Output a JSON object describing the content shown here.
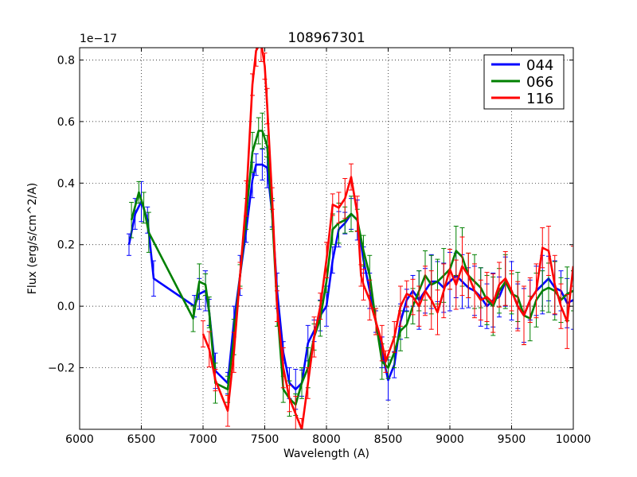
{
  "chart_data": {
    "type": "line",
    "title": "108967301",
    "xlabel": "Wavelength (A)",
    "ylabel": "Flux (erg/s/cm^2/A)",
    "offset_text": "1e−17",
    "xlim": [
      6000,
      10000
    ],
    "ylim": [
      -0.4,
      0.84
    ],
    "grid": true,
    "legend_position": "top-right",
    "x_ticks": [
      6000,
      6500,
      7000,
      7500,
      8000,
      8500,
      9000,
      9500,
      10000
    ],
    "x_tick_labels": [
      "6000",
      "6500",
      "7000",
      "7500",
      "8000",
      "8500",
      "9000",
      "9500",
      "10000"
    ],
    "y_ticks": [
      -0.2,
      0.0,
      0.2,
      0.4,
      0.6,
      0.8
    ],
    "y_tick_labels": [
      "−0.2",
      "0.0",
      "0.2",
      "0.4",
      "0.6",
      "0.8"
    ],
    "series": [
      {
        "name": "044",
        "color": "#0000ff",
        "points": [
          [
            6400,
            0.2
          ],
          [
            6450,
            0.3
          ],
          [
            6500,
            0.34
          ],
          [
            6550,
            0.28
          ],
          [
            6600,
            0.09
          ],
          [
            6930,
            0.0
          ],
          [
            6970,
            0.04
          ],
          [
            7020,
            0.05
          ],
          [
            7050,
            -0.02
          ],
          [
            7100,
            -0.21
          ],
          [
            7200,
            -0.25
          ],
          [
            7250,
            -0.05
          ],
          [
            7300,
            0.1
          ],
          [
            7350,
            0.25
          ],
          [
            7400,
            0.41
          ],
          [
            7430,
            0.46
          ],
          [
            7480,
            0.46
          ],
          [
            7520,
            0.45
          ],
          [
            7560,
            0.3
          ],
          [
            7600,
            0.05
          ],
          [
            7650,
            -0.15
          ],
          [
            7700,
            -0.25
          ],
          [
            7750,
            -0.27
          ],
          [
            7800,
            -0.25
          ],
          [
            7850,
            -0.12
          ],
          [
            7900,
            -0.08
          ],
          [
            7950,
            -0.03
          ],
          [
            8000,
            0.0
          ],
          [
            8050,
            0.15
          ],
          [
            8100,
            0.25
          ],
          [
            8150,
            0.27
          ],
          [
            8200,
            0.3
          ],
          [
            8250,
            0.28
          ],
          [
            8300,
            0.15
          ],
          [
            8350,
            0.05
          ],
          [
            8400,
            -0.05
          ],
          [
            8450,
            -0.15
          ],
          [
            8500,
            -0.24
          ],
          [
            8550,
            -0.19
          ],
          [
            8600,
            -0.05
          ],
          [
            8650,
            0.02
          ],
          [
            8700,
            0.05
          ],
          [
            8750,
            0.02
          ],
          [
            8800,
            0.05
          ],
          [
            8850,
            0.08
          ],
          [
            8900,
            0.08
          ],
          [
            8950,
            0.06
          ],
          [
            9000,
            0.08
          ],
          [
            9050,
            0.1
          ],
          [
            9100,
            0.08
          ],
          [
            9150,
            0.06
          ],
          [
            9200,
            0.05
          ],
          [
            9250,
            0.03
          ],
          [
            9300,
            0.0
          ],
          [
            9350,
            0.02
          ],
          [
            9400,
            0.03
          ],
          [
            9450,
            0.08
          ],
          [
            9500,
            0.05
          ],
          [
            9550,
            0.0
          ],
          [
            9600,
            -0.03
          ],
          [
            9650,
            0.02
          ],
          [
            9700,
            0.05
          ],
          [
            9750,
            0.07
          ],
          [
            9800,
            0.09
          ],
          [
            9850,
            0.06
          ],
          [
            9900,
            0.05
          ],
          [
            9950,
            0.01
          ],
          [
            10000,
            0.02
          ]
        ]
      },
      {
        "name": "066",
        "color": "#008000",
        "points": [
          [
            6420,
            0.28
          ],
          [
            6480,
            0.37
          ],
          [
            6520,
            0.32
          ],
          [
            6560,
            0.24
          ],
          [
            6920,
            -0.04
          ],
          [
            6970,
            0.08
          ],
          [
            7020,
            0.07
          ],
          [
            7050,
            -0.02
          ],
          [
            7100,
            -0.25
          ],
          [
            7200,
            -0.27
          ],
          [
            7250,
            -0.1
          ],
          [
            7300,
            0.1
          ],
          [
            7350,
            0.3
          ],
          [
            7400,
            0.5
          ],
          [
            7450,
            0.57
          ],
          [
            7480,
            0.57
          ],
          [
            7520,
            0.52
          ],
          [
            7560,
            0.3
          ],
          [
            7600,
            0.0
          ],
          [
            7650,
            -0.27
          ],
          [
            7700,
            -0.3
          ],
          [
            7750,
            -0.32
          ],
          [
            7800,
            -0.25
          ],
          [
            7850,
            -0.2
          ],
          [
            7900,
            -0.1
          ],
          [
            7950,
            -0.04
          ],
          [
            8000,
            0.08
          ],
          [
            8050,
            0.25
          ],
          [
            8100,
            0.27
          ],
          [
            8150,
            0.28
          ],
          [
            8200,
            0.3
          ],
          [
            8250,
            0.28
          ],
          [
            8300,
            0.18
          ],
          [
            8350,
            0.1
          ],
          [
            8400,
            -0.05
          ],
          [
            8450,
            -0.18
          ],
          [
            8500,
            -0.2
          ],
          [
            8550,
            -0.15
          ],
          [
            8600,
            -0.08
          ],
          [
            8650,
            -0.06
          ],
          [
            8700,
            0.0
          ],
          [
            8750,
            0.05
          ],
          [
            8800,
            0.1
          ],
          [
            8850,
            0.07
          ],
          [
            8900,
            0.08
          ],
          [
            8950,
            0.1
          ],
          [
            9000,
            0.12
          ],
          [
            9050,
            0.18
          ],
          [
            9100,
            0.16
          ],
          [
            9150,
            0.1
          ],
          [
            9200,
            0.08
          ],
          [
            9250,
            0.06
          ],
          [
            9300,
            0.02
          ],
          [
            9350,
            0.0
          ],
          [
            9400,
            0.05
          ],
          [
            9450,
            0.08
          ],
          [
            9500,
            0.04
          ],
          [
            9550,
            0.03
          ],
          [
            9600,
            -0.03
          ],
          [
            9650,
            -0.04
          ],
          [
            9700,
            0.02
          ],
          [
            9750,
            0.05
          ],
          [
            9800,
            0.06
          ],
          [
            9850,
            0.05
          ],
          [
            9900,
            0.02
          ],
          [
            9950,
            0.04
          ],
          [
            10000,
            0.05
          ]
        ]
      },
      {
        "name": "116",
        "color": "#ff0000",
        "points": [
          [
            7000,
            -0.09
          ],
          [
            7050,
            -0.14
          ],
          [
            7100,
            -0.24
          ],
          [
            7200,
            -0.34
          ],
          [
            7250,
            -0.15
          ],
          [
            7300,
            0.1
          ],
          [
            7350,
            0.35
          ],
          [
            7400,
            0.72
          ],
          [
            7430,
            0.83
          ],
          [
            7470,
            0.86
          ],
          [
            7500,
            0.78
          ],
          [
            7520,
            0.65
          ],
          [
            7560,
            0.35
          ],
          [
            7600,
            0.0
          ],
          [
            7650,
            -0.2
          ],
          [
            7700,
            -0.3
          ],
          [
            7750,
            -0.35
          ],
          [
            7800,
            -0.4
          ],
          [
            7850,
            -0.25
          ],
          [
            7900,
            -0.1
          ],
          [
            7950,
            0.0
          ],
          [
            8000,
            0.15
          ],
          [
            8050,
            0.33
          ],
          [
            8100,
            0.32
          ],
          [
            8150,
            0.35
          ],
          [
            8200,
            0.42
          ],
          [
            8250,
            0.3
          ],
          [
            8280,
            0.1
          ],
          [
            8300,
            0.07
          ],
          [
            8350,
            0.02
          ],
          [
            8400,
            -0.05
          ],
          [
            8450,
            -0.12
          ],
          [
            8480,
            -0.18
          ],
          [
            8550,
            -0.1
          ],
          [
            8600,
            0.0
          ],
          [
            8650,
            0.04
          ],
          [
            8700,
            0.03
          ],
          [
            8750,
            0.0
          ],
          [
            8800,
            0.05
          ],
          [
            8850,
            0.02
          ],
          [
            8900,
            -0.02
          ],
          [
            8950,
            0.05
          ],
          [
            9000,
            0.12
          ],
          [
            9050,
            0.07
          ],
          [
            9100,
            0.13
          ],
          [
            9150,
            0.1
          ],
          [
            9200,
            0.05
          ],
          [
            9250,
            0.02
          ],
          [
            9300,
            0.03
          ],
          [
            9350,
            0.01
          ],
          [
            9400,
            0.07
          ],
          [
            9450,
            0.09
          ],
          [
            9500,
            0.05
          ],
          [
            9550,
            0.0
          ],
          [
            9600,
            -0.03
          ],
          [
            9650,
            0.02
          ],
          [
            9700,
            0.05
          ],
          [
            9750,
            0.19
          ],
          [
            9800,
            0.18
          ],
          [
            9850,
            0.07
          ],
          [
            9900,
            0.0
          ],
          [
            9950,
            -0.05
          ],
          [
            10000,
            0.13
          ]
        ]
      }
    ],
    "zero_line": {
      "color": "#404040",
      "style": "dashed",
      "value": 0.0
    }
  }
}
